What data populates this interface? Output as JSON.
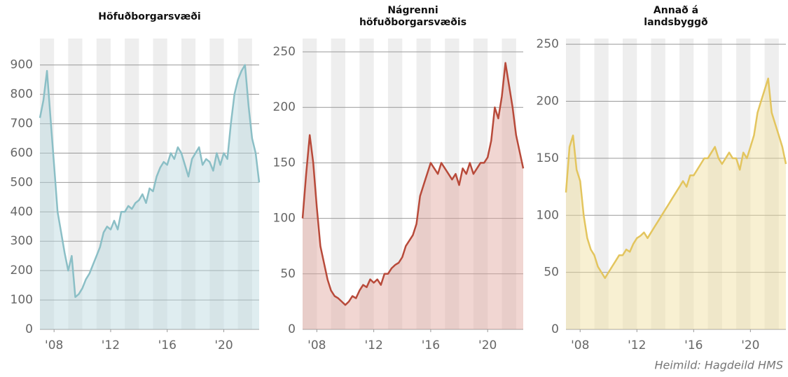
{
  "chart_data": [
    {
      "type": "line",
      "title": [
        "Höfuðborgarsvæði"
      ],
      "color": "#8bbfc6",
      "fill": "#b9d8dd",
      "x": [
        2007,
        2007.25,
        2007.5,
        2007.75,
        2008,
        2008.25,
        2008.5,
        2008.75,
        2009,
        2009.25,
        2009.5,
        2009.75,
        2010,
        2010.25,
        2010.5,
        2010.75,
        2011,
        2011.25,
        2011.5,
        2011.75,
        2012,
        2012.25,
        2012.5,
        2012.75,
        2013,
        2013.25,
        2013.5,
        2013.75,
        2014,
        2014.25,
        2014.5,
        2014.75,
        2015,
        2015.25,
        2015.5,
        2015.75,
        2016,
        2016.25,
        2016.5,
        2016.75,
        2017,
        2017.25,
        2017.5,
        2017.75,
        2018,
        2018.25,
        2018.5,
        2018.75,
        2019,
        2019.25,
        2019.5,
        2019.75,
        2020,
        2020.25,
        2020.5,
        2020.75,
        2021,
        2021.25,
        2021.5,
        2021.75,
        2022,
        2022.25,
        2022.5
      ],
      "values": [
        720,
        780,
        880,
        720,
        560,
        400,
        330,
        260,
        200,
        250,
        110,
        120,
        140,
        170,
        190,
        220,
        250,
        280,
        330,
        350,
        340,
        370,
        340,
        400,
        400,
        420,
        410,
        430,
        440,
        460,
        430,
        480,
        470,
        520,
        550,
        570,
        560,
        600,
        580,
        620,
        600,
        560,
        520,
        580,
        600,
        620,
        560,
        580,
        570,
        540,
        600,
        560,
        600,
        580,
        700,
        800,
        850,
        880,
        900,
        760,
        650,
        600,
        500
      ],
      "xlim": [
        2007,
        2022.5
      ],
      "ylim": [
        0,
        990
      ],
      "xticks": [
        {
          "value": 2008,
          "label": "'08"
        },
        {
          "value": 2012,
          "label": "'12"
        },
        {
          "value": 2016,
          "label": "'16"
        },
        {
          "value": 2020,
          "label": "'20"
        }
      ],
      "yticks": [
        0,
        100,
        200,
        300,
        400,
        500,
        600,
        700,
        800,
        900
      ],
      "grid": true
    },
    {
      "type": "line",
      "title": [
        "Nágrenni",
        "höfuðborgarsvæðis"
      ],
      "color": "#b84a3a",
      "fill": "#dfa49c",
      "x": [
        2007,
        2007.25,
        2007.5,
        2007.75,
        2008,
        2008.25,
        2008.5,
        2008.75,
        2009,
        2009.25,
        2009.5,
        2009.75,
        2010,
        2010.25,
        2010.5,
        2010.75,
        2011,
        2011.25,
        2011.5,
        2011.75,
        2012,
        2012.25,
        2012.5,
        2012.75,
        2013,
        2013.25,
        2013.5,
        2013.75,
        2014,
        2014.25,
        2014.5,
        2014.75,
        2015,
        2015.25,
        2015.5,
        2015.75,
        2016,
        2016.25,
        2016.5,
        2016.75,
        2017,
        2017.25,
        2017.5,
        2017.75,
        2018,
        2018.25,
        2018.5,
        2018.75,
        2019,
        2019.25,
        2019.5,
        2019.75,
        2020,
        2020.25,
        2020.5,
        2020.75,
        2021,
        2021.25,
        2021.5,
        2021.75,
        2022,
        2022.25,
        2022.5
      ],
      "values": [
        100,
        140,
        175,
        150,
        110,
        75,
        60,
        45,
        35,
        30,
        28,
        25,
        22,
        25,
        30,
        28,
        35,
        40,
        38,
        45,
        42,
        45,
        40,
        50,
        50,
        55,
        58,
        60,
        65,
        75,
        80,
        85,
        95,
        120,
        130,
        140,
        150,
        145,
        140,
        150,
        145,
        140,
        135,
        140,
        130,
        145,
        140,
        150,
        140,
        145,
        150,
        150,
        155,
        170,
        200,
        190,
        210,
        240,
        220,
        200,
        175,
        160,
        145
      ],
      "xlim": [
        2007,
        2022.5
      ],
      "ylim": [
        0,
        262
      ],
      "xticks": [
        {
          "value": 2008,
          "label": "'08"
        },
        {
          "value": 2012,
          "label": "'12"
        },
        {
          "value": 2016,
          "label": "'16"
        },
        {
          "value": 2020,
          "label": "'20"
        }
      ],
      "yticks": [
        0,
        50,
        100,
        150,
        200,
        250
      ],
      "grid": true
    },
    {
      "type": "line",
      "title": [
        "Annað á",
        "landsbyggð"
      ],
      "color": "#e3c55e",
      "fill": "#f0dd9c",
      "x": [
        2007,
        2007.25,
        2007.5,
        2007.75,
        2008,
        2008.25,
        2008.5,
        2008.75,
        2009,
        2009.25,
        2009.5,
        2009.75,
        2010,
        2010.25,
        2010.5,
        2010.75,
        2011,
        2011.25,
        2011.5,
        2011.75,
        2012,
        2012.25,
        2012.5,
        2012.75,
        2013,
        2013.25,
        2013.5,
        2013.75,
        2014,
        2014.25,
        2014.5,
        2014.75,
        2015,
        2015.25,
        2015.5,
        2015.75,
        2016,
        2016.25,
        2016.5,
        2016.75,
        2017,
        2017.25,
        2017.5,
        2017.75,
        2018,
        2018.25,
        2018.5,
        2018.75,
        2019,
        2019.25,
        2019.5,
        2019.75,
        2020,
        2020.25,
        2020.5,
        2020.75,
        2021,
        2021.25,
        2021.5,
        2021.75,
        2022,
        2022.25,
        2022.5
      ],
      "values": [
        120,
        160,
        170,
        140,
        130,
        100,
        80,
        70,
        65,
        55,
        50,
        45,
        50,
        55,
        60,
        65,
        65,
        70,
        68,
        75,
        80,
        82,
        85,
        80,
        85,
        90,
        95,
        100,
        105,
        110,
        115,
        120,
        125,
        130,
        125,
        135,
        135,
        140,
        145,
        150,
        150,
        155,
        160,
        150,
        145,
        150,
        155,
        150,
        150,
        140,
        155,
        150,
        160,
        170,
        190,
        200,
        210,
        220,
        190,
        180,
        170,
        160,
        145
      ],
      "xlim": [
        2007,
        2022.5
      ],
      "ylim": [
        0,
        255
      ],
      "xticks": [
        {
          "value": 2008,
          "label": "'08"
        },
        {
          "value": 2012,
          "label": "'12"
        },
        {
          "value": 2016,
          "label": "'16"
        },
        {
          "value": 2020,
          "label": "'20"
        }
      ],
      "yticks": [
        0,
        50,
        100,
        150,
        200,
        250
      ],
      "grid": true
    }
  ],
  "source": "Heimild: Hagdeild HMS"
}
